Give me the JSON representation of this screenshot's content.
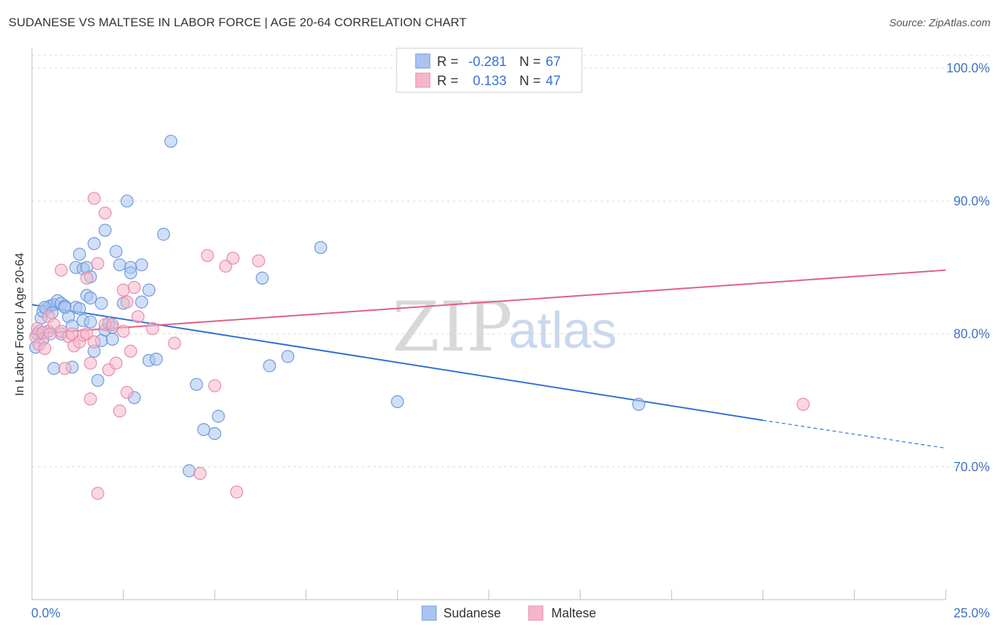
{
  "title": "SUDANESE VS MALTESE IN LABOR FORCE | AGE 20-64 CORRELATION CHART",
  "source": "Source: ZipAtlas.com",
  "watermark": {
    "zip": "ZIP",
    "atlas": "atlas"
  },
  "legend": {
    "rows": [
      {
        "r_label": "R =",
        "r_value": "-0.281",
        "n_label": "N =",
        "n_value": "67"
      },
      {
        "r_label": "R =",
        "r_value": "0.133",
        "n_label": "N =",
        "n_value": "47"
      }
    ]
  },
  "bottom_legend": [
    "Sudanese",
    "Maltese"
  ],
  "colors": {
    "sudanese_fill": "#aac4ef",
    "sudanese_stroke": "#6d99dd",
    "sudanese_line": "#2e6fd4",
    "maltese_fill": "#f6b6ca",
    "maltese_stroke": "#e88aa8",
    "maltese_line": "#e0608a",
    "grid": "#dcdcdc",
    "axis_text": "#4472c4"
  },
  "chart_data": {
    "type": "scatter",
    "title": "SUDANESE VS MALTESE IN LABOR FORCE | AGE 20-64 CORRELATION CHART",
    "xlabel": "",
    "ylabel": "In Labor Force | Age 20-64",
    "xlim": [
      0,
      25
    ],
    "ylim": [
      60,
      101.5
    ],
    "x_tick_labels": [
      "0.0%",
      "25.0%"
    ],
    "y_ticks": [
      70,
      80,
      90,
      100
    ],
    "y_tick_labels": [
      "70.0%",
      "80.0%",
      "90.0%",
      "100.0%"
    ],
    "series": [
      {
        "name": "Sudanese",
        "R": -0.281,
        "N": 67,
        "trend": {
          "x0": 0,
          "y0": 82.2,
          "x1": 20,
          "y1": 73.5,
          "dashed_to_x": 25,
          "dashed_to_y": 71.4
        },
        "points": [
          [
            0.1,
            79.0
          ],
          [
            0.2,
            80.2
          ],
          [
            0.25,
            81.2
          ],
          [
            0.3,
            79.6
          ],
          [
            0.3,
            81.7
          ],
          [
            0.4,
            81.9
          ],
          [
            0.5,
            82.1
          ],
          [
            0.6,
            82.2
          ],
          [
            0.7,
            82.5
          ],
          [
            0.8,
            82.3
          ],
          [
            0.9,
            82.1
          ],
          [
            0.8,
            80.0
          ],
          [
            1.0,
            81.3
          ],
          [
            1.1,
            80.6
          ],
          [
            1.2,
            82.0
          ],
          [
            1.3,
            81.9
          ],
          [
            1.2,
            85.0
          ],
          [
            1.3,
            86.0
          ],
          [
            1.4,
            84.9
          ],
          [
            1.5,
            85.0
          ],
          [
            1.6,
            84.3
          ],
          [
            1.4,
            81.0
          ],
          [
            1.5,
            82.9
          ],
          [
            1.6,
            82.7
          ],
          [
            1.6,
            80.9
          ],
          [
            1.7,
            78.7
          ],
          [
            1.8,
            76.5
          ],
          [
            1.9,
            79.5
          ],
          [
            1.9,
            82.3
          ],
          [
            2.0,
            80.3
          ],
          [
            2.1,
            80.8
          ],
          [
            2.2,
            79.6
          ],
          [
            2.2,
            80.5
          ],
          [
            1.7,
            86.8
          ],
          [
            2.0,
            87.8
          ],
          [
            2.3,
            86.2
          ],
          [
            2.4,
            85.2
          ],
          [
            2.5,
            82.3
          ],
          [
            2.6,
            90.0
          ],
          [
            2.7,
            85.0
          ],
          [
            2.7,
            84.6
          ],
          [
            2.8,
            75.2
          ],
          [
            3.0,
            82.4
          ],
          [
            3.0,
            85.2
          ],
          [
            3.2,
            83.3
          ],
          [
            3.2,
            78.0
          ],
          [
            3.4,
            78.1
          ],
          [
            3.6,
            87.5
          ],
          [
            3.8,
            94.5
          ],
          [
            4.3,
            69.7
          ],
          [
            4.5,
            76.2
          ],
          [
            4.7,
            72.8
          ],
          [
            5.0,
            72.5
          ],
          [
            5.1,
            73.8
          ],
          [
            6.3,
            84.2
          ],
          [
            6.5,
            77.6
          ],
          [
            7.0,
            78.3
          ],
          [
            7.9,
            86.5
          ],
          [
            10.0,
            74.9
          ],
          [
            16.6,
            74.7
          ],
          [
            0.6,
            77.4
          ],
          [
            1.1,
            77.5
          ],
          [
            0.9,
            82.0
          ],
          [
            0.45,
            80.2
          ],
          [
            0.35,
            82.0
          ],
          [
            0.15,
            80.0
          ],
          [
            0.55,
            81.6
          ]
        ]
      },
      {
        "name": "Maltese",
        "R": 0.133,
        "N": 47,
        "trend": {
          "x0": 0,
          "y0": 80.0,
          "x1": 25,
          "y1": 84.8
        },
        "points": [
          [
            0.1,
            79.8
          ],
          [
            0.15,
            80.4
          ],
          [
            0.2,
            79.2
          ],
          [
            0.3,
            80.1
          ],
          [
            0.35,
            78.9
          ],
          [
            0.45,
            81.3
          ],
          [
            0.6,
            80.7
          ],
          [
            0.8,
            80.2
          ],
          [
            0.8,
            84.8
          ],
          [
            0.9,
            77.4
          ],
          [
            1.0,
            79.8
          ],
          [
            1.1,
            80.0
          ],
          [
            1.15,
            79.1
          ],
          [
            1.3,
            79.4
          ],
          [
            1.4,
            79.9
          ],
          [
            1.5,
            84.2
          ],
          [
            1.5,
            80.0
          ],
          [
            1.6,
            75.1
          ],
          [
            1.6,
            77.8
          ],
          [
            1.7,
            90.2
          ],
          [
            1.7,
            79.4
          ],
          [
            1.8,
            85.3
          ],
          [
            1.8,
            68.0
          ],
          [
            2.0,
            89.1
          ],
          [
            2.0,
            80.7
          ],
          [
            2.1,
            77.3
          ],
          [
            2.2,
            80.7
          ],
          [
            2.3,
            77.8
          ],
          [
            2.4,
            74.2
          ],
          [
            2.5,
            80.2
          ],
          [
            2.5,
            83.3
          ],
          [
            2.6,
            82.4
          ],
          [
            2.6,
            75.6
          ],
          [
            2.7,
            78.7
          ],
          [
            2.8,
            83.5
          ],
          [
            2.9,
            81.3
          ],
          [
            3.3,
            80.4
          ],
          [
            3.9,
            79.3
          ],
          [
            4.6,
            69.5
          ],
          [
            4.8,
            85.9
          ],
          [
            5.0,
            76.1
          ],
          [
            5.3,
            85.1
          ],
          [
            5.5,
            85.7
          ],
          [
            5.6,
            68.1
          ],
          [
            6.2,
            85.5
          ],
          [
            21.1,
            74.7
          ],
          [
            0.5,
            80.0
          ]
        ]
      }
    ]
  }
}
